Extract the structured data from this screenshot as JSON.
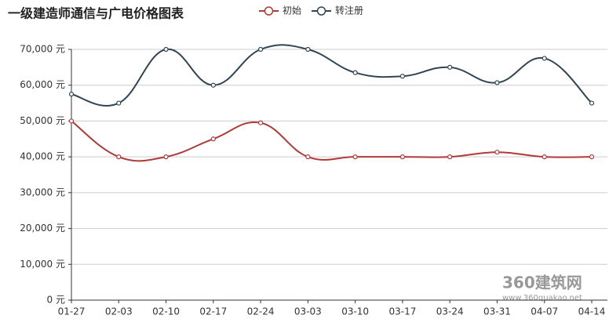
{
  "chart_data": {
    "type": "line",
    "title": "一级建造师通信与广电价格图表",
    "categories": [
      "01-27",
      "02-03",
      "02-10",
      "02-17",
      "02-24",
      "03-03",
      "03-10",
      "03-17",
      "03-24",
      "03-31",
      "04-07",
      "04-14"
    ],
    "series": [
      {
        "name": "初始",
        "color": "#b03a38",
        "values": [
          50000,
          40000,
          40000,
          45000,
          49500,
          40000,
          40000,
          40000,
          40000,
          41300,
          40000,
          40000
        ]
      },
      {
        "name": "转注册",
        "color": "#2f4554",
        "values": [
          57500,
          55000,
          70000,
          60000,
          70000,
          70000,
          63500,
          62500,
          65000,
          60700,
          67500,
          55000
        ]
      }
    ],
    "ylim": [
      0,
      70000
    ],
    "yticks": [
      {
        "value": 0,
        "label": "0 元"
      },
      {
        "value": 10000,
        "label": "10,000 元"
      },
      {
        "value": 20000,
        "label": "20,000 元"
      },
      {
        "value": 30000,
        "label": "30,000 元"
      },
      {
        "value": 40000,
        "label": "40,000 元"
      },
      {
        "value": 50000,
        "label": "50,000 元"
      },
      {
        "value": 60000,
        "label": "60,000 元"
      },
      {
        "value": 70000,
        "label": "70,000 元"
      }
    ],
    "grid": true,
    "watermark": "360建筑网",
    "watermark_url": "www.360quakao.net"
  }
}
